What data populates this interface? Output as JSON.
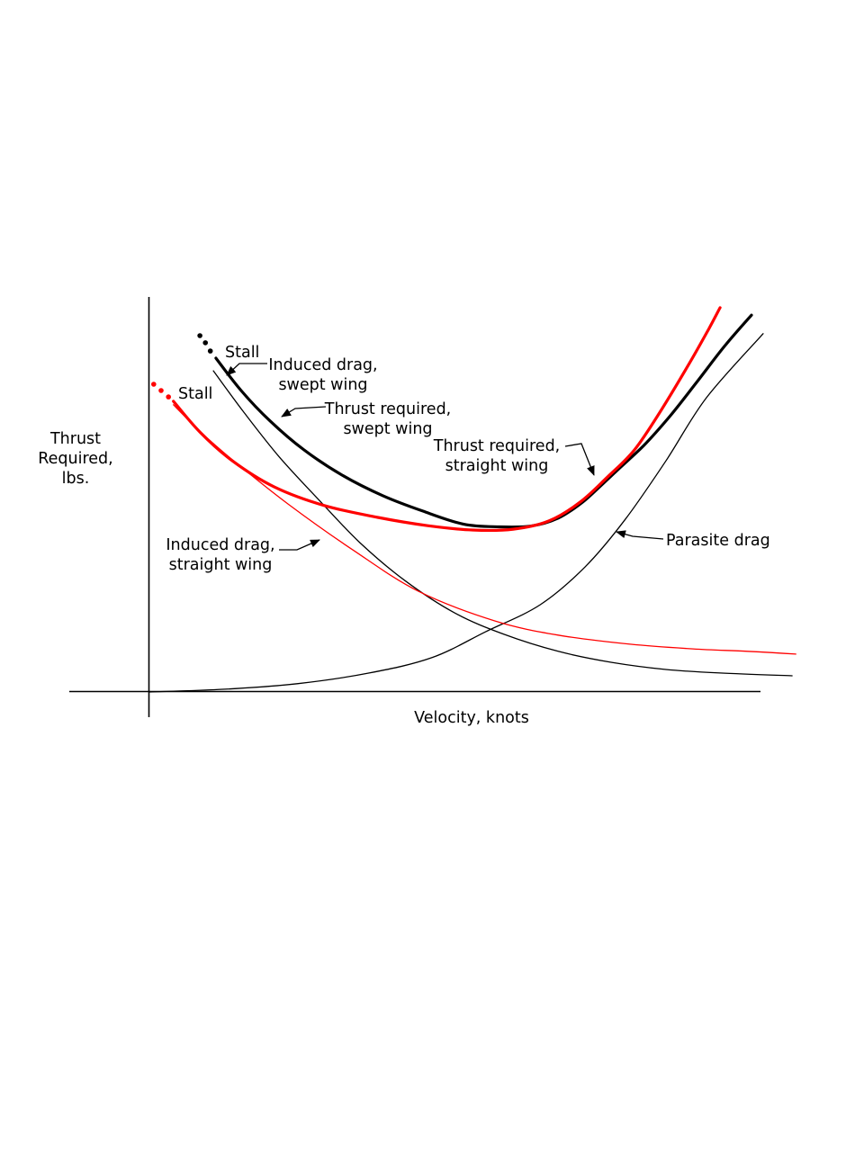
{
  "figure": {
    "background": "#ffffff",
    "axis": {
      "x_label": "Velocity, knots",
      "y_label_lines": [
        "Thrust",
        "Required,",
        "lbs."
      ]
    },
    "annotations": {
      "stall_swept": "Stall",
      "stall_straight": "Stall",
      "induced_swept_1": "Induced drag,",
      "induced_swept_2": "swept wing",
      "thrust_swept_1": "Thrust required,",
      "thrust_swept_2": "swept wing",
      "thrust_straight_1": "Thrust required,",
      "thrust_straight_2": "straight wing",
      "induced_straight_1": "Induced drag,",
      "induced_straight_2": "straight wing",
      "parasite": "Parasite drag"
    },
    "colors": {
      "swept_wing": "#000000",
      "straight_wing": "#ff0000"
    }
  },
  "chart_data": {
    "type": "line",
    "title": "Thrust required vs. velocity for swept and straight wings",
    "xlabel": "Velocity, knots",
    "ylabel": "Thrust Required, lbs.",
    "grid": false,
    "axes_numeric_ticks": false,
    "legend_position": "inline annotations with leader arrows",
    "x_range": [
      0,
      106
    ],
    "y_range": [
      0,
      100
    ],
    "units_note": "axes are qualitative (no numeric tick labels shown); values in relative 0-100 units",
    "series": [
      {
        "id": "thrust_swept",
        "name": "Thrust required, swept wing",
        "color": "#000000",
        "stroke_width": 3.2,
        "points": [
          [
            10.8,
            84.5
          ],
          [
            14.9,
            76.3
          ],
          [
            19.6,
            68.6
          ],
          [
            25.1,
            61.3
          ],
          [
            31.3,
            54.9
          ],
          [
            37.9,
            49.7
          ],
          [
            44.4,
            45.8
          ],
          [
            51.0,
            42.5
          ],
          [
            56.9,
            41.8
          ],
          [
            62.0,
            42.0
          ],
          [
            66.4,
            44.0
          ],
          [
            70.0,
            47.6
          ],
          [
            72.5,
            51.0
          ],
          [
            75.9,
            56.0
          ],
          [
            80.3,
            62.4
          ],
          [
            84.6,
            69.9
          ],
          [
            89.0,
            78.6
          ],
          [
            93.4,
            87.5
          ],
          [
            97.8,
            95.4
          ]
        ],
        "stall_dots": [
          [
            8.2,
            90.2
          ],
          [
            9.1,
            88.4
          ],
          [
            9.9,
            86.3
          ]
        ]
      },
      {
        "id": "thrust_straight",
        "name": "Thrust required, straight wing",
        "color": "#ff0000",
        "stroke_width": 3.2,
        "points": [
          [
            3.9,
            73.6
          ],
          [
            8.2,
            65.8
          ],
          [
            13.5,
            58.5
          ],
          [
            20.3,
            51.9
          ],
          [
            28.4,
            47.2
          ],
          [
            37.1,
            44.2
          ],
          [
            45.2,
            42.1
          ],
          [
            52.5,
            41.0
          ],
          [
            59.1,
            41.2
          ],
          [
            64.9,
            43.3
          ],
          [
            70.0,
            48.1
          ],
          [
            74.4,
            54.4
          ],
          [
            78.8,
            61.3
          ],
          [
            83.2,
            71.5
          ],
          [
            87.6,
            82.9
          ],
          [
            90.9,
            92.0
          ],
          [
            92.7,
            97.3
          ]
        ],
        "stall_dots": [
          [
            0.7,
            77.9
          ],
          [
            1.9,
            76.3
          ],
          [
            3.1,
            74.7
          ]
        ]
      },
      {
        "id": "induced_swept",
        "name": "Induced drag, swept wing",
        "color": "#000000",
        "stroke_width": 1.3,
        "points": [
          [
            10.4,
            81.3
          ],
          [
            15.2,
            71.1
          ],
          [
            21.1,
            59.5
          ],
          [
            27.6,
            48.5
          ],
          [
            34.2,
            37.8
          ],
          [
            41.5,
            28.2
          ],
          [
            49.6,
            20.0
          ],
          [
            57.6,
            14.6
          ],
          [
            66.4,
            10.3
          ],
          [
            75.1,
            7.5
          ],
          [
            83.9,
            5.7
          ],
          [
            92.7,
            4.8
          ],
          [
            104.4,
            4.1
          ]
        ]
      },
      {
        "id": "induced_straight",
        "name": "Induced drag, straight wing",
        "color": "#ff0000",
        "stroke_width": 1.3,
        "points": [
          [
            3.9,
            72.7
          ],
          [
            8.6,
            65.4
          ],
          [
            13.7,
            58.5
          ],
          [
            22.5,
            47.6
          ],
          [
            33.2,
            35.8
          ],
          [
            43.7,
            25.5
          ],
          [
            56.1,
            18.0
          ],
          [
            66.4,
            14.4
          ],
          [
            78.1,
            12.1
          ],
          [
            88.3,
            10.9
          ],
          [
            97.1,
            10.3
          ],
          [
            105.0,
            9.6
          ]
        ]
      },
      {
        "id": "parasite",
        "name": "Parasite drag",
        "color": "#000000",
        "stroke_width": 1.3,
        "points": [
          [
            0.0,
            0.0
          ],
          [
            12.3,
            0.7
          ],
          [
            24.0,
            2.1
          ],
          [
            35.7,
            4.8
          ],
          [
            45.9,
            8.7
          ],
          [
            54.7,
            15.3
          ],
          [
            63.5,
            22.1
          ],
          [
            70.8,
            31.7
          ],
          [
            77.3,
            43.7
          ],
          [
            83.9,
            58.5
          ],
          [
            90.5,
            74.5
          ],
          [
            99.7,
            90.7
          ]
        ]
      }
    ]
  }
}
